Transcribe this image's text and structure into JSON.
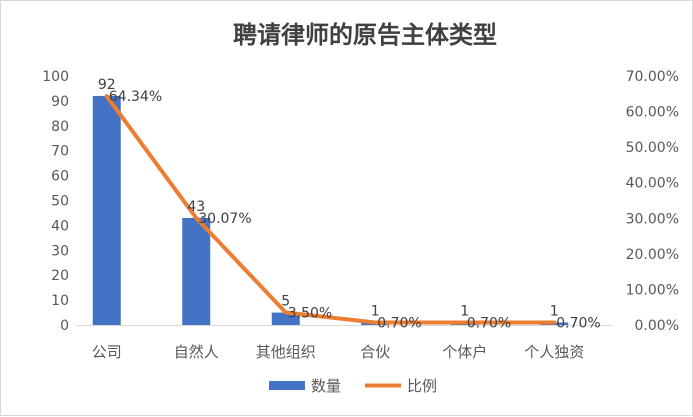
{
  "chart_data": {
    "type": "bar",
    "title": "聘请律师的原告主体类型",
    "categories": [
      "公司",
      "自然人",
      "其他组织",
      "合伙",
      "个体户",
      "个人独资"
    ],
    "series": [
      {
        "name": "数量",
        "type": "bar",
        "axis": "left",
        "values": [
          92,
          43,
          5,
          1,
          1,
          1
        ],
        "labels": [
          "92",
          "43",
          "5",
          "1",
          "1",
          "1"
        ],
        "color": "#4472C4"
      },
      {
        "name": "比例",
        "type": "line",
        "axis": "right",
        "values": [
          64.34,
          30.07,
          3.5,
          0.7,
          0.7,
          0.7
        ],
        "labels": [
          "64.34%",
          "30.07%",
          "3.50%",
          "0.70%",
          "0.70%",
          "0.70%"
        ],
        "color": "#ED7D31"
      }
    ],
    "y_left": {
      "min": 0,
      "max": 100,
      "ticks": [
        "0",
        "10",
        "20",
        "30",
        "40",
        "50",
        "60",
        "70",
        "80",
        "90",
        "100"
      ]
    },
    "y_right": {
      "min": 0,
      "max": 70,
      "ticks": [
        "0.00%",
        "10.00%",
        "20.00%",
        "30.00%",
        "40.00%",
        "50.00%",
        "60.00%",
        "70.00%"
      ]
    },
    "grid": false,
    "legend": {
      "position": "bottom"
    }
  }
}
